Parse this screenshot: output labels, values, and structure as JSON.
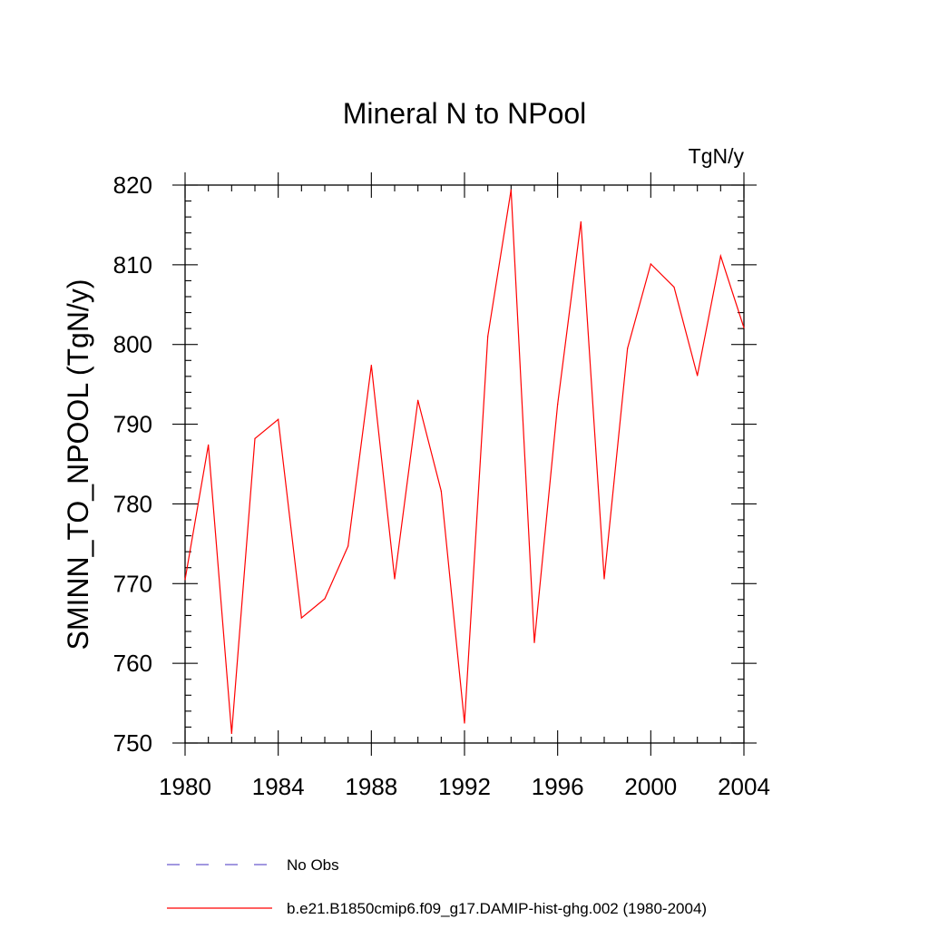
{
  "chart_data": {
    "type": "line",
    "title": "Mineral N to NPool",
    "units_label": "TgN/y",
    "ylabel": "SMINN_TO_NPOOL  (TgN/y)",
    "xlabel": "",
    "xlim": [
      1980,
      2004
    ],
    "ylim": [
      750,
      820
    ],
    "x_ticks": [
      "1980",
      "1984",
      "1988",
      "1992",
      "1996",
      "2000",
      "2004"
    ],
    "y_ticks": [
      "750",
      "760",
      "770",
      "780",
      "790",
      "800",
      "810",
      "820"
    ],
    "grid": false,
    "legend_position": "bottom",
    "x": [
      1980,
      1981,
      1982,
      1983,
      1984,
      1985,
      1986,
      1987,
      1988,
      1989,
      1990,
      1991,
      1992,
      1993,
      1994,
      1995,
      1996,
      1997,
      1998,
      1999,
      2000,
      2001,
      2002,
      2003,
      2004
    ],
    "series": [
      {
        "name": "b.e21.B1850cmip6.f09_g17.DAMIP-hist-ghg.002 (1980-2004)",
        "color": "#ff0000",
        "style": "solid",
        "values": [
          770.5,
          787.4,
          751.2,
          788.2,
          790.6,
          765.7,
          768.1,
          774.7,
          797.4,
          770.6,
          793.0,
          781.6,
          752.5,
          801.0,
          819.4,
          762.6,
          792.5,
          815.4,
          770.6,
          799.5,
          810.1,
          807.2,
          796.1,
          811.1,
          802.1
        ]
      }
    ],
    "legend": [
      {
        "label": "No Obs",
        "color": "#6a5acd",
        "style": "dashed"
      },
      {
        "label": "b.e21.B1850cmip6.f09_g17.DAMIP-hist-ghg.002 (1980-2004)",
        "color": "#ff0000",
        "style": "solid"
      }
    ]
  }
}
